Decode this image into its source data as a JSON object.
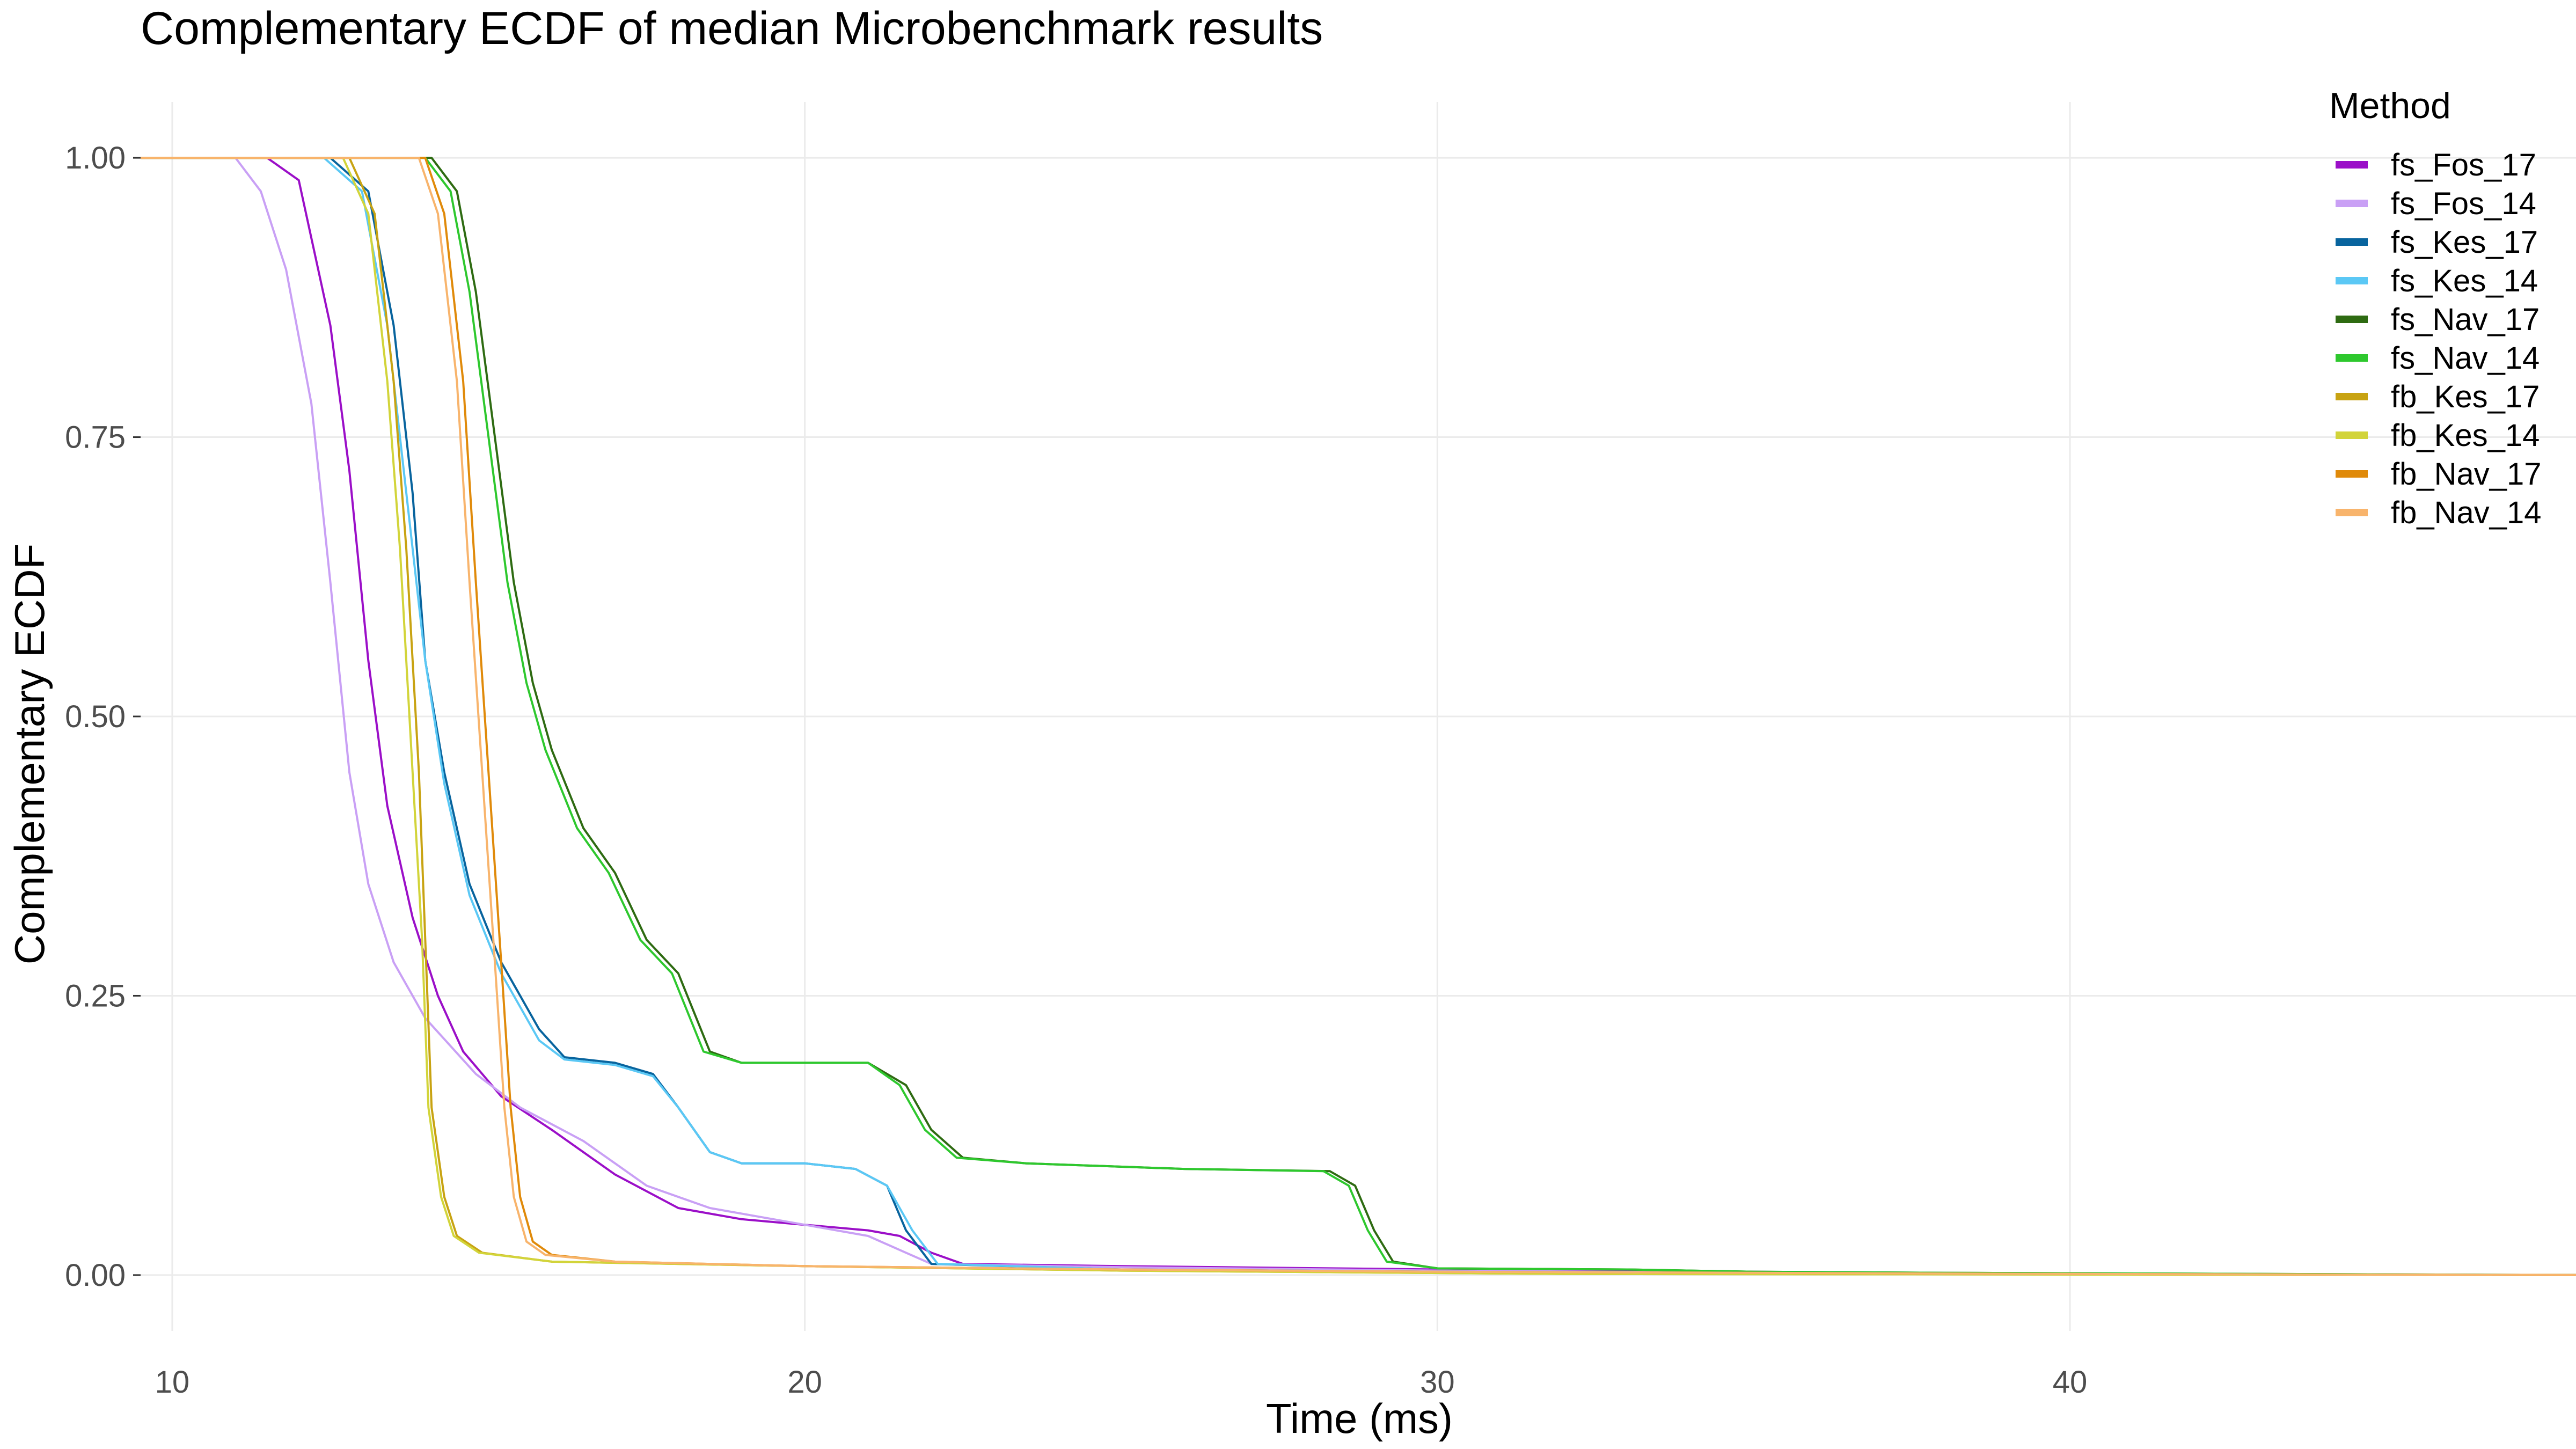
{
  "chart_data": {
    "type": "line",
    "title": "Complementary ECDF of median Microbenchmark results",
    "xlabel": "Time (ms)",
    "ylabel": "Complementary ECDF",
    "xlim": [
      9.5,
      48
    ],
    "ylim": [
      -0.05,
      1.05
    ],
    "x_ticks": [
      10,
      20,
      30,
      40
    ],
    "x_tick_labels": [
      "10",
      "20",
      "30",
      "40"
    ],
    "y_ticks": [
      0,
      0.25,
      0.5,
      0.75,
      1
    ],
    "y_tick_labels": [
      "0.00",
      "0.25",
      "0.50",
      "0.75",
      "1.00"
    ],
    "grid": true,
    "legend_position": "right",
    "legend_title": "Method",
    "series": [
      {
        "name": "fs_Fos_17",
        "color": "#9B0FC8",
        "points": [
          [
            9.5,
            1
          ],
          [
            11.5,
            1
          ],
          [
            12.0,
            0.98
          ],
          [
            12.5,
            0.85
          ],
          [
            12.8,
            0.72
          ],
          [
            13.1,
            0.55
          ],
          [
            13.4,
            0.42
          ],
          [
            13.8,
            0.32
          ],
          [
            14.2,
            0.25
          ],
          [
            14.6,
            0.2
          ],
          [
            15.2,
            0.16
          ],
          [
            16,
            0.13
          ],
          [
            17,
            0.09
          ],
          [
            18,
            0.06
          ],
          [
            19,
            0.05
          ],
          [
            20,
            0.045
          ],
          [
            21,
            0.04
          ],
          [
            21.5,
            0.035
          ],
          [
            22,
            0.02
          ],
          [
            22.5,
            0.01
          ],
          [
            25,
            0.008
          ],
          [
            30,
            0.005
          ],
          [
            35,
            0.003
          ],
          [
            40,
            0.001
          ],
          [
            48,
            0
          ]
        ]
      },
      {
        "name": "fs_Fos_14",
        "color": "#C9A0F5",
        "points": [
          [
            9.5,
            1
          ],
          [
            11,
            1
          ],
          [
            11.4,
            0.97
          ],
          [
            11.8,
            0.9
          ],
          [
            12.2,
            0.78
          ],
          [
            12.5,
            0.62
          ],
          [
            12.8,
            0.45
          ],
          [
            13.1,
            0.35
          ],
          [
            13.5,
            0.28
          ],
          [
            14,
            0.23
          ],
          [
            14.8,
            0.18
          ],
          [
            15.5,
            0.15
          ],
          [
            16.5,
            0.12
          ],
          [
            17.5,
            0.08
          ],
          [
            18.5,
            0.06
          ],
          [
            20,
            0.045
          ],
          [
            21,
            0.035
          ],
          [
            21.6,
            0.02
          ],
          [
            22,
            0.01
          ],
          [
            25,
            0.007
          ],
          [
            30,
            0.004
          ],
          [
            35,
            0.002
          ],
          [
            40,
            0.001
          ],
          [
            48,
            0
          ]
        ]
      },
      {
        "name": "fs_Kes_17",
        "color": "#08649E",
        "points": [
          [
            9.5,
            1
          ],
          [
            12.5,
            1
          ],
          [
            13.1,
            0.97
          ],
          [
            13.5,
            0.85
          ],
          [
            13.8,
            0.7
          ],
          [
            14.0,
            0.55
          ],
          [
            14.3,
            0.45
          ],
          [
            14.7,
            0.35
          ],
          [
            15.2,
            0.28
          ],
          [
            15.8,
            0.22
          ],
          [
            16.2,
            0.195
          ],
          [
            17,
            0.19
          ],
          [
            17.6,
            0.18
          ],
          [
            18,
            0.15
          ],
          [
            18.5,
            0.11
          ],
          [
            19,
            0.1
          ],
          [
            20,
            0.1
          ],
          [
            20.8,
            0.095
          ],
          [
            21.3,
            0.08
          ],
          [
            21.6,
            0.04
          ],
          [
            22,
            0.01
          ],
          [
            25,
            0.005
          ],
          [
            30,
            0.003
          ],
          [
            40,
            0.001
          ],
          [
            48,
            0
          ]
        ]
      },
      {
        "name": "fs_Kes_14",
        "color": "#5BC8F5",
        "points": [
          [
            9.5,
            1
          ],
          [
            12.4,
            1
          ],
          [
            13.0,
            0.97
          ],
          [
            13.4,
            0.85
          ],
          [
            13.7,
            0.7
          ],
          [
            14.0,
            0.55
          ],
          [
            14.3,
            0.44
          ],
          [
            14.7,
            0.34
          ],
          [
            15.2,
            0.27
          ],
          [
            15.8,
            0.21
          ],
          [
            16.2,
            0.193
          ],
          [
            17,
            0.188
          ],
          [
            17.6,
            0.178
          ],
          [
            18,
            0.15
          ],
          [
            18.5,
            0.11
          ],
          [
            19,
            0.1
          ],
          [
            20,
            0.1
          ],
          [
            20.8,
            0.095
          ],
          [
            21.3,
            0.08
          ],
          [
            21.7,
            0.04
          ],
          [
            22.1,
            0.01
          ],
          [
            25,
            0.005
          ],
          [
            30,
            0.003
          ],
          [
            40,
            0.001
          ],
          [
            48,
            0
          ]
        ]
      },
      {
        "name": "fs_Nav_17",
        "color": "#2E6B12",
        "points": [
          [
            9.5,
            1
          ],
          [
            14.1,
            1
          ],
          [
            14.5,
            0.97
          ],
          [
            14.8,
            0.88
          ],
          [
            15.1,
            0.75
          ],
          [
            15.4,
            0.62
          ],
          [
            15.7,
            0.53
          ],
          [
            16.0,
            0.47
          ],
          [
            16.5,
            0.4
          ],
          [
            17.0,
            0.36
          ],
          [
            17.5,
            0.3
          ],
          [
            18.0,
            0.27
          ],
          [
            18.5,
            0.2
          ],
          [
            19,
            0.19
          ],
          [
            21,
            0.19
          ],
          [
            21.6,
            0.17
          ],
          [
            22,
            0.13
          ],
          [
            22.5,
            0.105
          ],
          [
            23.5,
            0.1
          ],
          [
            26,
            0.095
          ],
          [
            28.3,
            0.093
          ],
          [
            28.7,
            0.08
          ],
          [
            29.0,
            0.04
          ],
          [
            29.3,
            0.012
          ],
          [
            30,
            0.006
          ],
          [
            33,
            0.005
          ],
          [
            35,
            0.003
          ],
          [
            38,
            0.002
          ],
          [
            43,
            0.001
          ],
          [
            48,
            0
          ]
        ]
      },
      {
        "name": "fs_Nav_14",
        "color": "#2EC82E",
        "points": [
          [
            9.5,
            1
          ],
          [
            14.0,
            1
          ],
          [
            14.4,
            0.97
          ],
          [
            14.7,
            0.88
          ],
          [
            15.0,
            0.75
          ],
          [
            15.3,
            0.62
          ],
          [
            15.6,
            0.53
          ],
          [
            15.9,
            0.47
          ],
          [
            16.4,
            0.4
          ],
          [
            16.9,
            0.36
          ],
          [
            17.4,
            0.3
          ],
          [
            17.9,
            0.27
          ],
          [
            18.4,
            0.2
          ],
          [
            19,
            0.19
          ],
          [
            21,
            0.19
          ],
          [
            21.5,
            0.17
          ],
          [
            21.9,
            0.13
          ],
          [
            22.4,
            0.105
          ],
          [
            23.5,
            0.1
          ],
          [
            26,
            0.095
          ],
          [
            28.2,
            0.093
          ],
          [
            28.6,
            0.08
          ],
          [
            28.9,
            0.04
          ],
          [
            29.2,
            0.012
          ],
          [
            30,
            0.006
          ],
          [
            33,
            0.005
          ],
          [
            35,
            0.003
          ],
          [
            38,
            0.002
          ],
          [
            43,
            0.001
          ],
          [
            48,
            0
          ]
        ]
      },
      {
        "name": "fb_Kes_17",
        "color": "#C8A312",
        "points": [
          [
            9.5,
            1
          ],
          [
            12.8,
            1
          ],
          [
            13.2,
            0.95
          ],
          [
            13.5,
            0.8
          ],
          [
            13.7,
            0.65
          ],
          [
            13.9,
            0.45
          ],
          [
            14.0,
            0.3
          ],
          [
            14.1,
            0.15
          ],
          [
            14.3,
            0.07
          ],
          [
            14.5,
            0.035
          ],
          [
            14.9,
            0.02
          ],
          [
            16,
            0.012
          ],
          [
            20,
            0.008
          ],
          [
            25,
            0.004
          ],
          [
            32,
            0.001
          ],
          [
            48,
            0
          ]
        ]
      },
      {
        "name": "fb_Kes_14",
        "color": "#D2D43A",
        "points": [
          [
            9.5,
            1
          ],
          [
            12.7,
            1
          ],
          [
            13.1,
            0.95
          ],
          [
            13.4,
            0.8
          ],
          [
            13.6,
            0.65
          ],
          [
            13.8,
            0.45
          ],
          [
            13.95,
            0.3
          ],
          [
            14.05,
            0.15
          ],
          [
            14.25,
            0.07
          ],
          [
            14.45,
            0.035
          ],
          [
            14.85,
            0.02
          ],
          [
            16,
            0.012
          ],
          [
            20,
            0.008
          ],
          [
            25,
            0.004
          ],
          [
            32,
            0.001
          ],
          [
            48,
            0
          ]
        ]
      },
      {
        "name": "fb_Nav_17",
        "color": "#E08A0A",
        "points": [
          [
            9.5,
            1
          ],
          [
            14.0,
            1
          ],
          [
            14.3,
            0.95
          ],
          [
            14.6,
            0.8
          ],
          [
            14.8,
            0.62
          ],
          [
            15.0,
            0.45
          ],
          [
            15.2,
            0.28
          ],
          [
            15.35,
            0.15
          ],
          [
            15.5,
            0.07
          ],
          [
            15.7,
            0.03
          ],
          [
            16.0,
            0.018
          ],
          [
            17,
            0.012
          ],
          [
            20,
            0.008
          ],
          [
            25,
            0.005
          ],
          [
            30,
            0.003
          ],
          [
            40,
            0.001
          ],
          [
            48,
            0
          ]
        ]
      },
      {
        "name": "fb_Nav_14",
        "color": "#F8B46C",
        "points": [
          [
            9.5,
            1
          ],
          [
            13.9,
            1
          ],
          [
            14.2,
            0.95
          ],
          [
            14.5,
            0.8
          ],
          [
            14.7,
            0.62
          ],
          [
            14.9,
            0.45
          ],
          [
            15.1,
            0.28
          ],
          [
            15.25,
            0.15
          ],
          [
            15.4,
            0.07
          ],
          [
            15.6,
            0.03
          ],
          [
            15.9,
            0.018
          ],
          [
            17,
            0.012
          ],
          [
            20,
            0.008
          ],
          [
            25,
            0.005
          ],
          [
            30,
            0.003
          ],
          [
            40,
            0.001
          ],
          [
            48,
            0
          ]
        ]
      }
    ]
  }
}
